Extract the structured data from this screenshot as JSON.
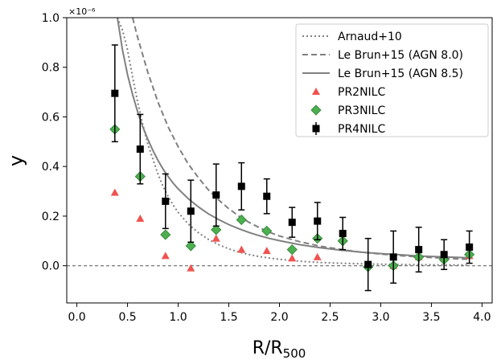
{
  "chart_data": {
    "type": "scatter",
    "title": "",
    "xlabel_main": "R/R",
    "xlabel_sub": "500",
    "ylabel": "y",
    "y_offset_label": "×10⁻⁶",
    "xlim": [
      -0.1,
      4.1
    ],
    "ylim": [
      -0.15,
      1.0
    ],
    "xticks": [
      0.0,
      0.5,
      1.0,
      1.5,
      2.0,
      2.5,
      3.0,
      3.5,
      4.0
    ],
    "xtick_labels": [
      "0.0",
      "0.5",
      "1.0",
      "1.5",
      "2.0",
      "2.5",
      "3.0",
      "3.5",
      "4.0"
    ],
    "yticks": [
      0.0,
      0.2,
      0.4,
      0.6,
      0.8,
      1.0
    ],
    "ytick_labels": [
      "0.0",
      "0.2",
      "0.4",
      "0.6",
      "0.8",
      "1.0"
    ],
    "zero_line": true,
    "legend_position": "top-right",
    "colors": {
      "model": "#808080",
      "pr2": "#ef5350",
      "pr3": "#4caf50",
      "pr3_edge": "#2e7d32",
      "pr4": "#000000"
    },
    "lines": [
      {
        "name": "Arnaud+10",
        "style": "dotted",
        "x": [
          0.4,
          0.45,
          0.5,
          0.55,
          0.6,
          0.65,
          0.7,
          0.75,
          0.8,
          0.85,
          0.9,
          0.95,
          1.0,
          1.1,
          1.2,
          1.3,
          1.4,
          1.5,
          1.6,
          1.7,
          1.8,
          1.9,
          2.0,
          2.2,
          2.4,
          2.6,
          2.8,
          3.0,
          3.2,
          3.4,
          3.6,
          3.8,
          3.87
        ],
        "y": [
          1.0,
          0.95,
          0.87,
          0.76,
          0.66,
          0.57,
          0.49,
          0.43,
          0.37,
          0.32,
          0.28,
          0.245,
          0.215,
          0.168,
          0.133,
          0.106,
          0.085,
          0.068,
          0.055,
          0.045,
          0.037,
          0.031,
          0.026,
          0.018,
          0.013,
          0.01,
          0.008,
          0.006,
          0.005,
          0.004,
          0.0035,
          0.003,
          0.003
        ]
      },
      {
        "name": "Le Brun+15 (AGN 8.0)",
        "style": "dashed",
        "x": [
          0.55,
          0.6,
          0.65,
          0.7,
          0.75,
          0.8,
          0.85,
          0.9,
          0.95,
          1.0,
          1.1,
          1.2,
          1.3,
          1.4,
          1.5,
          1.6,
          1.7,
          1.8,
          1.9,
          2.0,
          2.2,
          2.4,
          2.6,
          2.8,
          3.0,
          3.2,
          3.4,
          3.6,
          3.8,
          3.87
        ],
        "y": [
          1.0,
          0.92,
          0.85,
          0.78,
          0.72,
          0.66,
          0.61,
          0.56,
          0.52,
          0.48,
          0.41,
          0.355,
          0.305,
          0.265,
          0.23,
          0.2,
          0.175,
          0.154,
          0.135,
          0.12,
          0.097,
          0.079,
          0.066,
          0.055,
          0.047,
          0.04,
          0.035,
          0.031,
          0.027,
          0.026
        ]
      },
      {
        "name": "Le Brun+15 (AGN 8.5)",
        "style": "solid",
        "x": [
          0.4,
          0.45,
          0.5,
          0.55,
          0.6,
          0.65,
          0.7,
          0.75,
          0.8,
          0.85,
          0.9,
          0.95,
          1.0,
          1.1,
          1.2,
          1.3,
          1.4,
          1.5,
          1.6,
          1.7,
          1.8,
          1.9,
          2.0,
          2.2,
          2.4,
          2.6,
          2.8,
          3.0,
          3.2,
          3.4,
          3.6,
          3.8,
          3.87
        ],
        "y": [
          1.0,
          0.87,
          0.77,
          0.69,
          0.62,
          0.56,
          0.51,
          0.465,
          0.425,
          0.39,
          0.36,
          0.333,
          0.31,
          0.27,
          0.237,
          0.209,
          0.186,
          0.166,
          0.149,
          0.134,
          0.121,
          0.11,
          0.101,
          0.085,
          0.073,
          0.063,
          0.055,
          0.049,
          0.044,
          0.039,
          0.036,
          0.033,
          0.032
        ]
      }
    ],
    "series": [
      {
        "name": "PR2NILC",
        "marker": "triangle",
        "x": [
          0.375,
          0.625,
          0.875,
          1.125,
          1.375,
          1.625,
          1.875,
          2.125,
          2.375,
          2.625,
          2.875,
          3.125,
          3.375,
          3.625,
          3.875
        ],
        "y": [
          0.295,
          0.19,
          0.04,
          -0.01,
          0.11,
          0.065,
          0.06,
          0.03,
          0.035,
          null,
          0.005,
          0.0,
          0.035,
          0.03,
          0.04
        ]
      },
      {
        "name": "PR3NILC",
        "marker": "diamond",
        "x": [
          0.375,
          0.625,
          0.875,
          1.125,
          1.375,
          1.625,
          1.875,
          2.125,
          2.375,
          2.625,
          2.875,
          3.125,
          3.375,
          3.625,
          3.875
        ],
        "y": [
          0.55,
          0.36,
          0.125,
          0.08,
          0.145,
          0.185,
          0.14,
          0.065,
          0.11,
          0.1,
          -0.005,
          0.0,
          0.035,
          0.025,
          0.045
        ]
      },
      {
        "name": "PR4NILC",
        "marker": "square",
        "x": [
          0.375,
          0.625,
          0.875,
          1.125,
          1.375,
          1.625,
          1.875,
          2.125,
          2.375,
          2.625,
          2.875,
          3.125,
          3.375,
          3.625,
          3.875
        ],
        "y": [
          0.695,
          0.47,
          0.26,
          0.22,
          0.285,
          0.32,
          0.28,
          0.175,
          0.18,
          0.13,
          0.005,
          0.035,
          0.065,
          0.045,
          0.075
        ],
        "yerr": [
          0.195,
          0.14,
          0.11,
          0.125,
          0.125,
          0.095,
          0.07,
          0.06,
          0.075,
          0.065,
          0.105,
          0.105,
          0.09,
          0.06,
          0.065
        ]
      }
    ],
    "legend": [
      "Arnaud+10",
      "Le Brun+15 (AGN 8.0)",
      "Le Brun+15 (AGN 8.5)",
      "PR2NILC",
      "PR3NILC",
      "PR4NILC"
    ]
  }
}
